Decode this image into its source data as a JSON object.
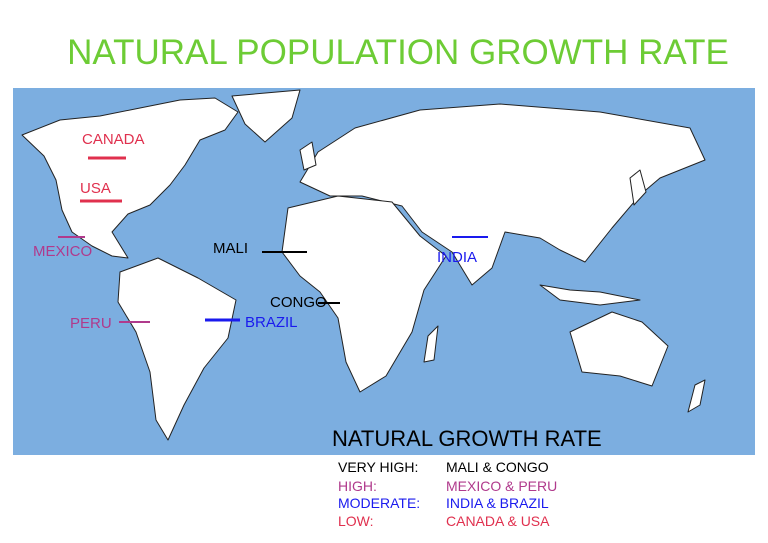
{
  "title": "NATURAL POPULATION GROWTH RATE",
  "map_labels": {
    "canada": "CANADA",
    "usa": "USA",
    "mexico": "MEXICO",
    "mali": "MALI",
    "india": "INDIA",
    "congo": "CONGO",
    "peru": "PERU",
    "brazil": "BRAZIL"
  },
  "legend": {
    "title": "NATURAL GROWTH RATE",
    "rows": [
      {
        "level": "VERY HIGH:",
        "countries": "MALI & CONGO"
      },
      {
        "level": "HIGH:",
        "countries": "MEXICO & PERU"
      },
      {
        "level": "MODERATE:",
        "countries": "INDIA & BRAZIL"
      },
      {
        "level": "LOW:",
        "countries": "CANADA & USA"
      }
    ]
  }
}
